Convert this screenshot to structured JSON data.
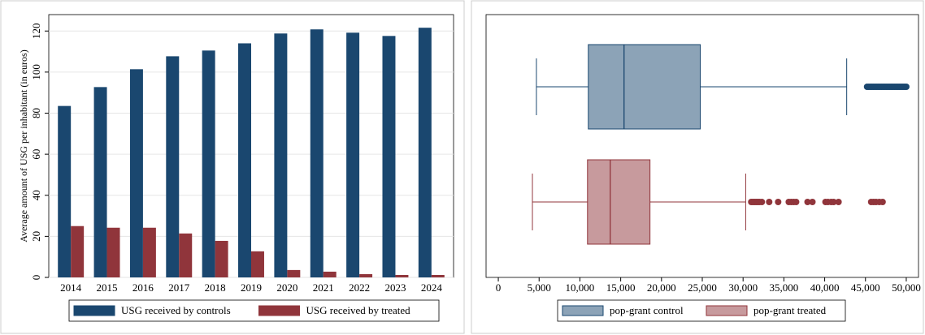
{
  "chart_data": [
    {
      "type": "bar",
      "ylabel": "Average amount of USG per inhabitant (in euros)",
      "categories": [
        "2014",
        "2015",
        "2016",
        "2017",
        "2018",
        "2019",
        "2020",
        "2021",
        "2022",
        "2023",
        "2024"
      ],
      "series": [
        {
          "name": "USG received by controls",
          "color": "#1a476f",
          "values": [
            83.5,
            92.7,
            101.4,
            107.7,
            110.5,
            114,
            118.8,
            120.8,
            119.2,
            117.6,
            121.6
          ]
        },
        {
          "name": "USG received by treated",
          "color": "#90353b",
          "values": [
            25,
            24.2,
            24.2,
            21.4,
            17.8,
            12.7,
            3.6,
            2.8,
            1.6,
            1.2,
            1.2
          ]
        }
      ],
      "ylim": [
        0,
        128
      ],
      "yticks": [
        0,
        20,
        40,
        60,
        80,
        100,
        120
      ],
      "grid": true
    },
    {
      "type": "box",
      "series": [
        {
          "name": "pop-grant control",
          "color": "#1a476f",
          "whislo": 4670,
          "q1": 11030,
          "med": 15410,
          "q3": 24750,
          "whishi": 42700,
          "fliers": [
            45200,
            45400,
            45600,
            45800,
            46000,
            46200,
            46400,
            46600,
            46800,
            47000,
            47200,
            47400,
            47600,
            47800,
            48000,
            48200,
            48400,
            48600,
            48800,
            49000,
            49200,
            49400,
            49600,
            49800,
            50000
          ]
        },
        {
          "name": "pop-grant treated",
          "color": "#90353b",
          "whislo": 4180,
          "q1": 10930,
          "med": 13720,
          "q3": 18590,
          "whishi": 30320,
          "fliers": [
            31000,
            31200,
            31400,
            31600,
            31800,
            32000,
            32300,
            33200,
            34300,
            35600,
            35900,
            36200,
            36500,
            37900,
            38500,
            40100,
            40400,
            40800,
            41100,
            41700,
            45700,
            46000,
            46300,
            46700,
            47100
          ]
        }
      ],
      "xlim": [
        -1500,
        51500
      ],
      "xticks": [
        0,
        {
          "value": 5000,
          "label": "5,000"
        },
        {
          "value": 10000,
          "label": "10,000"
        },
        {
          "value": 15000,
          "label": "15,000"
        },
        {
          "value": 20000,
          "label": "20,000"
        },
        {
          "value": 25000,
          "label": "25,000"
        },
        {
          "value": 30000,
          "label": "30,000"
        },
        {
          "value": 35000,
          "label": "35,000"
        },
        {
          "value": 40000,
          "label": "40,000"
        },
        {
          "value": 45000,
          "label": "45,000"
        },
        {
          "value": 50000,
          "label": "50,000"
        }
      ],
      "grid": false
    }
  ]
}
